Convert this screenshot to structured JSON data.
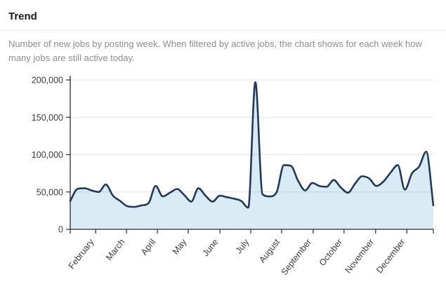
{
  "header": {
    "title": "Trend",
    "description": "Number of new jobs by posting week. When filtered by active jobs, the chart shows for each week how many jobs are still active today."
  },
  "chart_data": {
    "type": "area",
    "title": "Trend",
    "xlabel": "",
    "ylabel": "",
    "x_unit": "posting week",
    "ylim": [
      0,
      200000
    ],
    "grid": "horizontal",
    "legend": "none",
    "weekly_values": [
      38000,
      54000,
      55000,
      52000,
      50000,
      60000,
      45000,
      38000,
      31000,
      30000,
      32000,
      35000,
      58000,
      44000,
      49000,
      54000,
      46000,
      37000,
      55000,
      45000,
      37000,
      45000,
      43000,
      41000,
      38000,
      29000,
      197000,
      47000,
      44000,
      50000,
      86000,
      85000,
      65000,
      52000,
      62000,
      58000,
      57000,
      66000,
      56000,
      49000,
      61000,
      71000,
      68000,
      58000,
      64000,
      76000,
      86000,
      53000,
      75000,
      84000,
      104000,
      32000
    ],
    "y_ticks": [
      {
        "value": 0,
        "label": "0"
      },
      {
        "value": 50000,
        "label": "50,000"
      },
      {
        "value": 100000,
        "label": "100,000"
      },
      {
        "value": 150000,
        "label": "150,000"
      },
      {
        "value": 200000,
        "label": "200,000"
      }
    ],
    "months": [
      {
        "label": "February",
        "f": 0.07
      },
      {
        "label": "March",
        "f": 0.155
      },
      {
        "label": "April",
        "f": 0.24
      },
      {
        "label": "May",
        "f": 0.325
      },
      {
        "label": "June",
        "f": 0.412
      },
      {
        "label": "July",
        "f": 0.497
      },
      {
        "label": "August",
        "f": 0.582
      },
      {
        "label": "September",
        "f": 0.669
      },
      {
        "label": "October",
        "f": 0.754
      },
      {
        "label": "November",
        "f": 0.841
      },
      {
        "label": "December",
        "f": 0.927
      }
    ],
    "colors": {
      "line": "#1f3a5c",
      "fill": "#d9ecf5",
      "grid": "#e3e3e3",
      "axis": "#2b2b2b",
      "tick_text": "#3a3a3a"
    }
  }
}
